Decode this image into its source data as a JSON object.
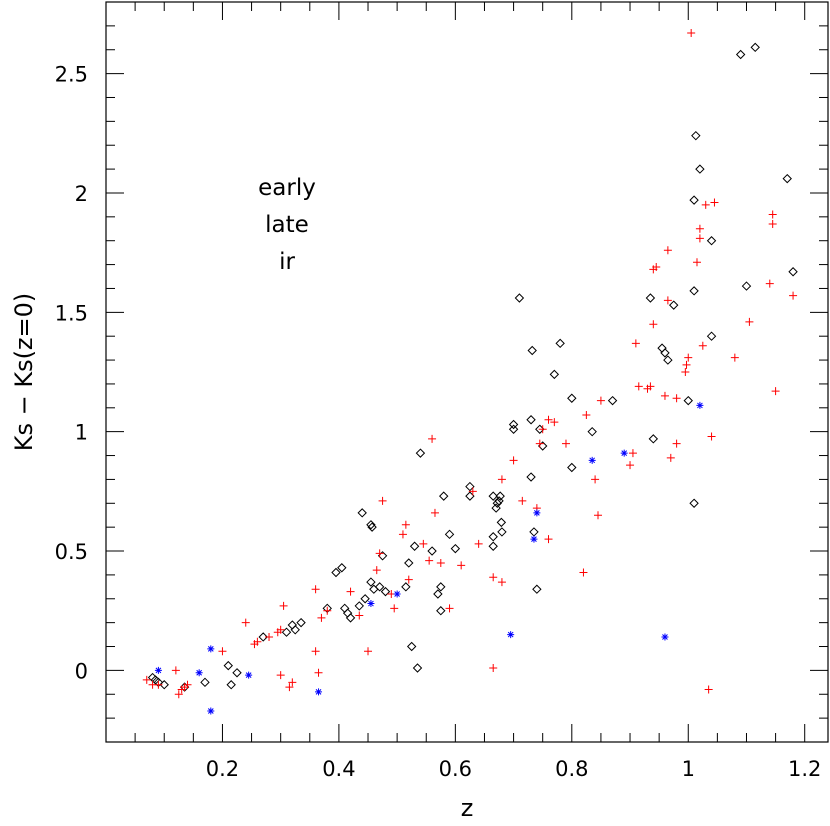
{
  "chart_data": {
    "type": "scatter",
    "title": "",
    "xlabel": "z",
    "ylabel": "Ks − Ks(z=0)",
    "xlim": [
      0.0,
      1.24
    ],
    "ylim": [
      -0.3,
      2.8
    ],
    "x_ticks": [
      0.2,
      0.4,
      0.6,
      0.8,
      1,
      1.2
    ],
    "x_tick_labels": [
      "0.2",
      "0.4",
      "0.6",
      "0.8",
      "1",
      "1.2"
    ],
    "y_ticks": [
      0,
      0.5,
      1,
      1.5,
      2,
      2.5
    ],
    "y_tick_labels": [
      "0",
      "0.5",
      "1",
      "1.5",
      "2",
      "2.5"
    ],
    "x_minor_step": 0.05,
    "y_minor_step": 0.1,
    "grid": false,
    "legend_position": "upper-left inside",
    "series": [
      {
        "name": "early",
        "marker": "diamond",
        "color": "#000000",
        "points": [
          [
            0.08,
            -0.03
          ],
          [
            0.085,
            -0.04
          ],
          [
            0.09,
            -0.05
          ],
          [
            0.1,
            -0.06
          ],
          [
            0.135,
            -0.07
          ],
          [
            0.17,
            -0.05
          ],
          [
            0.21,
            0.02
          ],
          [
            0.215,
            -0.06
          ],
          [
            0.225,
            -0.01
          ],
          [
            0.27,
            0.14
          ],
          [
            0.31,
            0.16
          ],
          [
            0.32,
            0.19
          ],
          [
            0.325,
            0.17
          ],
          [
            0.335,
            0.2
          ],
          [
            0.38,
            0.26
          ],
          [
            0.395,
            0.41
          ],
          [
            0.405,
            0.43
          ],
          [
            0.41,
            0.26
          ],
          [
            0.415,
            0.24
          ],
          [
            0.42,
            0.22
          ],
          [
            0.435,
            0.27
          ],
          [
            0.44,
            0.66
          ],
          [
            0.445,
            0.3
          ],
          [
            0.455,
            0.37
          ],
          [
            0.455,
            0.61
          ],
          [
            0.457,
            0.6
          ],
          [
            0.46,
            0.34
          ],
          [
            0.47,
            0.35
          ],
          [
            0.475,
            0.48
          ],
          [
            0.48,
            0.33
          ],
          [
            0.515,
            0.35
          ],
          [
            0.52,
            0.45
          ],
          [
            0.525,
            0.1
          ],
          [
            0.53,
            0.52
          ],
          [
            0.535,
            0.01
          ],
          [
            0.54,
            0.91
          ],
          [
            0.56,
            0.5
          ],
          [
            0.57,
            0.32
          ],
          [
            0.575,
            0.35
          ],
          [
            0.575,
            0.25
          ],
          [
            0.58,
            0.73
          ],
          [
            0.59,
            0.57
          ],
          [
            0.6,
            0.51
          ],
          [
            0.625,
            0.73
          ],
          [
            0.625,
            0.77
          ],
          [
            0.665,
            0.52
          ],
          [
            0.665,
            0.56
          ],
          [
            0.665,
            0.73
          ],
          [
            0.67,
            0.68
          ],
          [
            0.672,
            0.7
          ],
          [
            0.675,
            0.71
          ],
          [
            0.677,
            0.73
          ],
          [
            0.679,
            0.62
          ],
          [
            0.68,
            0.58
          ],
          [
            0.7,
            1.01
          ],
          [
            0.7,
            1.03
          ],
          [
            0.71,
            1.56
          ],
          [
            0.73,
            0.81
          ],
          [
            0.73,
            1.05
          ],
          [
            0.732,
            1.34
          ],
          [
            0.735,
            0.58
          ],
          [
            0.74,
            0.34
          ],
          [
            0.745,
            1.01
          ],
          [
            0.75,
            0.94
          ],
          [
            0.77,
            1.24
          ],
          [
            0.78,
            1.37
          ],
          [
            0.8,
            0.85
          ],
          [
            0.8,
            1.14
          ],
          [
            0.835,
            1.0
          ],
          [
            0.87,
            1.13
          ],
          [
            0.935,
            1.56
          ],
          [
            0.94,
            0.97
          ],
          [
            0.955,
            1.35
          ],
          [
            0.96,
            1.33
          ],
          [
            0.965,
            1.3
          ],
          [
            0.975,
            1.53
          ],
          [
            1.0,
            1.13
          ],
          [
            1.01,
            0.7
          ],
          [
            1.01,
            1.59
          ],
          [
            1.01,
            1.97
          ],
          [
            1.013,
            2.24
          ],
          [
            1.02,
            2.1
          ],
          [
            1.04,
            1.4
          ],
          [
            1.04,
            1.8
          ],
          [
            1.09,
            2.58
          ],
          [
            1.1,
            1.61
          ],
          [
            1.115,
            2.61
          ],
          [
            1.17,
            2.06
          ],
          [
            1.18,
            1.67
          ]
        ]
      },
      {
        "name": "late",
        "marker": "plus",
        "color": "#ff0000",
        "points": [
          [
            0.07,
            -0.04
          ],
          [
            0.08,
            -0.06
          ],
          [
            0.09,
            -0.06
          ],
          [
            0.12,
            0.0
          ],
          [
            0.125,
            -0.1
          ],
          [
            0.13,
            -0.08
          ],
          [
            0.135,
            -0.07
          ],
          [
            0.14,
            -0.06
          ],
          [
            0.2,
            0.08
          ],
          [
            0.24,
            0.2
          ],
          [
            0.255,
            0.11
          ],
          [
            0.26,
            0.12
          ],
          [
            0.28,
            0.14
          ],
          [
            0.295,
            0.16
          ],
          [
            0.3,
            0.17
          ],
          [
            0.3,
            -0.02
          ],
          [
            0.305,
            0.27
          ],
          [
            0.315,
            -0.07
          ],
          [
            0.32,
            -0.05
          ],
          [
            0.36,
            0.08
          ],
          [
            0.36,
            0.34
          ],
          [
            0.365,
            -0.01
          ],
          [
            0.37,
            0.22
          ],
          [
            0.38,
            0.25
          ],
          [
            0.42,
            0.33
          ],
          [
            0.435,
            0.23
          ],
          [
            0.45,
            0.08
          ],
          [
            0.465,
            0.42
          ],
          [
            0.47,
            0.49
          ],
          [
            0.475,
            0.71
          ],
          [
            0.49,
            0.32
          ],
          [
            0.495,
            0.26
          ],
          [
            0.51,
            0.57
          ],
          [
            0.515,
            0.61
          ],
          [
            0.52,
            0.38
          ],
          [
            0.545,
            0.53
          ],
          [
            0.555,
            0.46
          ],
          [
            0.56,
            0.97
          ],
          [
            0.565,
            0.66
          ],
          [
            0.575,
            0.45
          ],
          [
            0.59,
            0.26
          ],
          [
            0.61,
            0.44
          ],
          [
            0.63,
            0.75
          ],
          [
            0.64,
            0.53
          ],
          [
            0.665,
            0.39
          ],
          [
            0.665,
            0.01
          ],
          [
            0.68,
            0.37
          ],
          [
            0.68,
            0.8
          ],
          [
            0.7,
            0.88
          ],
          [
            0.715,
            0.71
          ],
          [
            0.74,
            0.68
          ],
          [
            0.745,
            0.95
          ],
          [
            0.75,
            1.01
          ],
          [
            0.76,
            1.05
          ],
          [
            0.76,
            0.55
          ],
          [
            0.77,
            1.04
          ],
          [
            0.79,
            0.95
          ],
          [
            0.82,
            0.41
          ],
          [
            0.825,
            1.07
          ],
          [
            0.84,
            0.8
          ],
          [
            0.845,
            0.65
          ],
          [
            0.85,
            1.13
          ],
          [
            0.9,
            0.86
          ],
          [
            0.905,
            0.91
          ],
          [
            0.91,
            1.37
          ],
          [
            0.915,
            1.19
          ],
          [
            0.93,
            1.18
          ],
          [
            0.935,
            1.19
          ],
          [
            0.94,
            1.45
          ],
          [
            0.94,
            1.68
          ],
          [
            0.945,
            1.69
          ],
          [
            0.96,
            1.15
          ],
          [
            0.965,
            1.55
          ],
          [
            0.965,
            1.76
          ],
          [
            0.97,
            0.89
          ],
          [
            0.98,
            1.14
          ],
          [
            0.98,
            0.95
          ],
          [
            0.995,
            1.25
          ],
          [
            0.997,
            1.28
          ],
          [
            1.0,
            1.31
          ],
          [
            1.005,
            2.67
          ],
          [
            1.015,
            1.71
          ],
          [
            1.02,
            1.81
          ],
          [
            1.02,
            1.85
          ],
          [
            1.025,
            1.36
          ],
          [
            1.03,
            1.95
          ],
          [
            1.035,
            -0.08
          ],
          [
            1.04,
            0.98
          ],
          [
            1.045,
            1.96
          ],
          [
            1.08,
            1.31
          ],
          [
            1.105,
            1.46
          ],
          [
            1.14,
            1.62
          ],
          [
            1.145,
            1.91
          ],
          [
            1.145,
            1.87
          ],
          [
            1.15,
            1.17
          ],
          [
            1.18,
            1.57
          ]
        ]
      },
      {
        "name": "ir",
        "marker": "asterisk",
        "color": "#0000ff",
        "points": [
          [
            0.09,
            0.0
          ],
          [
            0.16,
            -0.01
          ],
          [
            0.18,
            0.09
          ],
          [
            0.18,
            -0.17
          ],
          [
            0.245,
            -0.02
          ],
          [
            0.365,
            -0.09
          ],
          [
            0.455,
            0.28
          ],
          [
            0.5,
            0.32
          ],
          [
            0.695,
            0.15
          ],
          [
            0.735,
            0.55
          ],
          [
            0.74,
            0.66
          ],
          [
            0.835,
            0.88
          ],
          [
            0.89,
            0.91
          ],
          [
            0.96,
            0.14
          ],
          [
            1.02,
            1.11
          ]
        ]
      }
    ]
  }
}
